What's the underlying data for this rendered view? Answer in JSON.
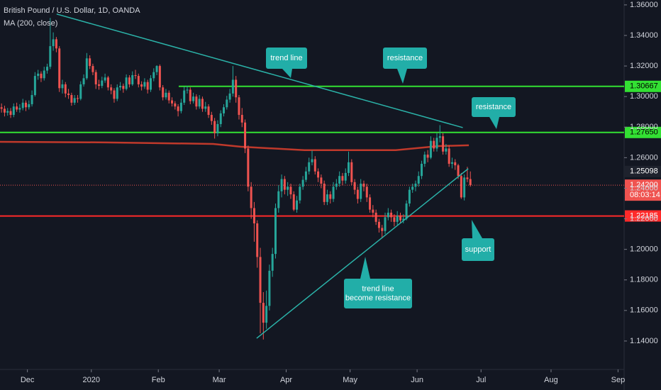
{
  "chart_data": {
    "type": "candlestick",
    "title": "British Pound / U.S. Dollar, 1D, OANDA",
    "subtitle": "MA (200, close)",
    "up_color": "#26a69a",
    "down_color": "#ef5350",
    "candles": [
      [
        1.293,
        1.2955,
        1.2895,
        1.292
      ],
      [
        1.292,
        1.294,
        1.287,
        1.2895
      ],
      [
        1.2895,
        1.2925,
        1.2875,
        1.2905
      ],
      [
        1.2905,
        1.2925,
        1.286,
        1.288
      ],
      [
        1.288,
        1.2955,
        1.2865,
        1.2935
      ],
      [
        1.2935,
        1.296,
        1.29,
        1.2915
      ],
      [
        1.2915,
        1.295,
        1.2895,
        1.2925
      ],
      [
        1.2925,
        1.2985,
        1.291,
        1.296
      ],
      [
        1.296,
        1.2975,
        1.2905,
        1.293
      ],
      [
        1.293,
        1.2975,
        1.2915,
        1.295
      ],
      [
        1.295,
        1.304,
        1.2935,
        1.301
      ],
      [
        1.301,
        1.316,
        1.3,
        1.3135
      ],
      [
        1.3135,
        1.3175,
        1.311,
        1.315
      ],
      [
        1.315,
        1.3165,
        1.3095,
        1.312
      ],
      [
        1.312,
        1.3195,
        1.3105,
        1.317
      ],
      [
        1.317,
        1.3215,
        1.315,
        1.3195
      ],
      [
        1.3195,
        1.3515,
        1.318,
        1.333
      ],
      [
        1.333,
        1.342,
        1.33,
        1.3375
      ],
      [
        1.3375,
        1.339,
        1.329,
        1.3315
      ],
      [
        1.3315,
        1.333,
        1.303,
        1.3055
      ],
      [
        1.3055,
        1.311,
        1.302,
        1.308
      ],
      [
        1.308,
        1.3095,
        1.2995,
        1.302
      ],
      [
        1.302,
        1.305,
        1.2985,
        1.301
      ],
      [
        1.301,
        1.3025,
        1.294,
        1.296
      ],
      [
        1.296,
        1.301,
        1.2945,
        1.299
      ],
      [
        1.299,
        1.301,
        1.296,
        1.2985
      ],
      [
        1.2985,
        1.31,
        1.2975,
        1.308
      ],
      [
        1.308,
        1.3145,
        1.3065,
        1.312
      ],
      [
        1.312,
        1.3285,
        1.311,
        1.325
      ],
      [
        1.325,
        1.327,
        1.318,
        1.32
      ],
      [
        1.32,
        1.3215,
        1.314,
        1.316
      ],
      [
        1.316,
        1.3175,
        1.305,
        1.308
      ],
      [
        1.308,
        1.311,
        1.3045,
        1.307
      ],
      [
        1.307,
        1.313,
        1.3055,
        1.3105
      ],
      [
        1.3105,
        1.315,
        1.309,
        1.3125
      ],
      [
        1.3125,
        1.3135,
        1.304,
        1.306
      ],
      [
        1.306,
        1.308,
        1.3015,
        1.304
      ],
      [
        1.304,
        1.3055,
        1.296,
        1.2985
      ],
      [
        1.2985,
        1.308,
        1.297,
        1.306
      ],
      [
        1.306,
        1.3095,
        1.304,
        1.307
      ],
      [
        1.307,
        1.3085,
        1.3025,
        1.305
      ],
      [
        1.305,
        1.3145,
        1.304,
        1.3125
      ],
      [
        1.3125,
        1.314,
        1.306,
        1.308
      ],
      [
        1.308,
        1.3165,
        1.307,
        1.314
      ],
      [
        1.314,
        1.3175,
        1.3115,
        1.3135
      ],
      [
        1.3135,
        1.315,
        1.306,
        1.308
      ],
      [
        1.308,
        1.31,
        1.304,
        1.3065
      ],
      [
        1.3065,
        1.312,
        1.305,
        1.3095
      ],
      [
        1.3095,
        1.311,
        1.302,
        1.3045
      ],
      [
        1.3045,
        1.314,
        1.303,
        1.312
      ],
      [
        1.312,
        1.3185,
        1.31,
        1.316
      ],
      [
        1.316,
        1.3205,
        1.314,
        1.32
      ],
      [
        1.32,
        1.321,
        1.304,
        1.306
      ],
      [
        1.306,
        1.3075,
        1.2975,
        1.2995
      ],
      [
        1.2995,
        1.305,
        1.298,
        1.3025
      ],
      [
        1.3025,
        1.304,
        1.2955,
        1.2975
      ],
      [
        1.2975,
        1.2995,
        1.2935,
        1.2955
      ],
      [
        1.2955,
        1.297,
        1.2915,
        1.2935
      ],
      [
        1.2935,
        1.295,
        1.287,
        1.2905
      ],
      [
        1.2905,
        1.2985,
        1.289,
        1.296
      ],
      [
        1.296,
        1.3065,
        1.2945,
        1.304
      ],
      [
        1.304,
        1.307,
        1.302,
        1.3045
      ],
      [
        1.3045,
        1.306,
        1.295,
        1.297
      ],
      [
        1.297,
        1.3025,
        1.2955,
        1.3
      ],
      [
        1.3,
        1.3015,
        1.2915,
        1.2935
      ],
      [
        1.2935,
        1.301,
        1.292,
        1.2985
      ],
      [
        1.2985,
        1.3,
        1.29,
        1.292
      ],
      [
        1.292,
        1.2965,
        1.29,
        1.2935
      ],
      [
        1.2935,
        1.295,
        1.286,
        1.288
      ],
      [
        1.288,
        1.29,
        1.2815,
        1.284
      ],
      [
        1.284,
        1.286,
        1.2725,
        1.276
      ],
      [
        1.276,
        1.2845,
        1.274,
        1.282
      ],
      [
        1.282,
        1.291,
        1.28,
        1.289
      ],
      [
        1.289,
        1.295,
        1.287,
        1.293
      ],
      [
        1.293,
        1.3005,
        1.2915,
        1.298
      ],
      [
        1.298,
        1.305,
        1.296,
        1.302
      ],
      [
        1.302,
        1.32,
        1.3,
        1.311
      ],
      [
        1.311,
        1.3135,
        1.296,
        1.2995
      ],
      [
        1.2995,
        1.301,
        1.285,
        1.288
      ],
      [
        1.288,
        1.2925,
        1.28,
        1.283
      ],
      [
        1.283,
        1.285,
        1.263,
        1.266
      ],
      [
        1.266,
        1.268,
        1.238,
        1.241
      ],
      [
        1.241,
        1.244,
        1.22,
        1.227
      ],
      [
        1.227,
        1.231,
        1.205,
        1.217
      ],
      [
        1.217,
        1.219,
        1.188,
        1.195
      ],
      [
        1.195,
        1.201,
        1.145,
        1.165
      ],
      [
        1.165,
        1.172,
        1.141,
        1.152
      ],
      [
        1.152,
        1.173,
        1.148,
        1.163
      ],
      [
        1.163,
        1.19,
        1.16,
        1.186
      ],
      [
        1.186,
        1.201,
        1.182,
        1.197
      ],
      [
        1.197,
        1.23,
        1.194,
        1.227
      ],
      [
        1.227,
        1.242,
        1.224,
        1.238
      ],
      [
        1.238,
        1.249,
        1.234,
        1.246
      ],
      [
        1.246,
        1.248,
        1.236,
        1.239
      ],
      [
        1.239,
        1.244,
        1.235,
        1.241
      ],
      [
        1.241,
        1.243,
        1.233,
        1.236
      ],
      [
        1.236,
        1.238,
        1.225,
        1.226
      ],
      [
        1.226,
        1.235,
        1.224,
        1.232
      ],
      [
        1.232,
        1.243,
        1.23,
        1.241
      ],
      [
        1.241,
        1.248,
        1.239,
        1.2455
      ],
      [
        1.2455,
        1.254,
        1.244,
        1.251
      ],
      [
        1.251,
        1.26,
        1.249,
        1.257
      ],
      [
        1.257,
        1.2647,
        1.255,
        1.259
      ],
      [
        1.259,
        1.261,
        1.249,
        1.251
      ],
      [
        1.251,
        1.253,
        1.244,
        1.247
      ],
      [
        1.247,
        1.249,
        1.24,
        1.243
      ],
      [
        1.243,
        1.245,
        1.229,
        1.231
      ],
      [
        1.231,
        1.239,
        1.229,
        1.236
      ],
      [
        1.236,
        1.238,
        1.23,
        1.233
      ],
      [
        1.233,
        1.244,
        1.231,
        1.241
      ],
      [
        1.241,
        1.246,
        1.239,
        1.243
      ],
      [
        1.243,
        1.251,
        1.241,
        1.248
      ],
      [
        1.248,
        1.25,
        1.242,
        1.245
      ],
      [
        1.245,
        1.253,
        1.243,
        1.25
      ],
      [
        1.25,
        1.264,
        1.248,
        1.257
      ],
      [
        1.257,
        1.259,
        1.242,
        1.244
      ],
      [
        1.244,
        1.246,
        1.236,
        1.239
      ],
      [
        1.239,
        1.241,
        1.23,
        1.233
      ],
      [
        1.233,
        1.246,
        1.231,
        1.243
      ],
      [
        1.243,
        1.245,
        1.238,
        1.241
      ],
      [
        1.241,
        1.243,
        1.231,
        1.234
      ],
      [
        1.234,
        1.236,
        1.224,
        1.226
      ],
      [
        1.226,
        1.229,
        1.221,
        1.224
      ],
      [
        1.224,
        1.226,
        1.216,
        1.218
      ],
      [
        1.218,
        1.22,
        1.211,
        1.214
      ],
      [
        1.214,
        1.216,
        1.2075,
        1.212
      ],
      [
        1.212,
        1.224,
        1.21,
        1.221
      ],
      [
        1.221,
        1.227,
        1.219,
        1.224
      ],
      [
        1.224,
        1.226,
        1.218,
        1.221
      ],
      [
        1.221,
        1.223,
        1.215,
        1.218
      ],
      [
        1.218,
        1.225,
        1.216,
        1.222
      ],
      [
        1.222,
        1.224,
        1.217,
        1.219
      ],
      [
        1.219,
        1.223,
        1.217,
        1.22
      ],
      [
        1.22,
        1.232,
        1.219,
        1.23
      ],
      [
        1.23,
        1.241,
        1.228,
        1.239
      ],
      [
        1.239,
        1.243,
        1.237,
        1.241
      ],
      [
        1.241,
        1.245,
        1.238,
        1.243
      ],
      [
        1.243,
        1.251,
        1.241,
        1.248
      ],
      [
        1.248,
        1.258,
        1.246,
        1.256
      ],
      [
        1.256,
        1.264,
        1.254,
        1.262
      ],
      [
        1.262,
        1.265,
        1.257,
        1.26
      ],
      [
        1.26,
        1.274,
        1.259,
        1.271
      ],
      [
        1.271,
        1.273,
        1.264,
        1.266
      ],
      [
        1.266,
        1.276,
        1.264,
        1.273
      ],
      [
        1.273,
        1.2813,
        1.27,
        1.274
      ],
      [
        1.274,
        1.276,
        1.262,
        1.264
      ],
      [
        1.264,
        1.269,
        1.262,
        1.266
      ],
      [
        1.266,
        1.268,
        1.254,
        1.256
      ],
      [
        1.256,
        1.26,
        1.253,
        1.257
      ],
      [
        1.257,
        1.259,
        1.252,
        1.255
      ],
      [
        1.255,
        1.256,
        1.246,
        1.248
      ],
      [
        1.248,
        1.25,
        1.233,
        1.234
      ],
      [
        1.234,
        1.249,
        1.232,
        1.247
      ],
      [
        1.247,
        1.254,
        1.244,
        1.246
      ],
      [
        1.246,
        1.251,
        1.241,
        1.242
      ]
    ],
    "ma": {
      "name": "MA (200, close)",
      "color": "#c0392b",
      "x": [
        0,
        35,
        70,
        79,
        100,
        130,
        144,
        154
      ],
      "values": [
        1.2704,
        1.27,
        1.269,
        1.2672,
        1.2649,
        1.2649,
        1.2676,
        1.2681
      ]
    },
    "trend_lines": [
      {
        "color": "#2bb3a9",
        "x": [
          18.6,
          152
        ],
        "values": [
          1.354,
          1.2797
        ]
      },
      {
        "color": "#2bb3a9",
        "x": [
          84.3,
          153.8
        ],
        "values": [
          1.1418,
          1.2528
        ]
      }
    ],
    "levels": [
      {
        "value": 1.30667,
        "color": "#33e033",
        "text_color": "#000000",
        "from": 58.7
      },
      {
        "value": 1.2765,
        "label": "1.27650",
        "color": "#33e033",
        "text_color": "#000000"
      },
      {
        "value": 1.22185,
        "color": "#ff2a2a",
        "text_color": "#ffffff"
      }
    ],
    "last_price": {
      "value": 1.242,
      "label": "1.24200",
      "countdown": "08:03:14",
      "color": "#ef5350"
    },
    "price_tag": {
      "value": 1.25098,
      "color": "#1e222d"
    },
    "annotations": [
      [
        "trend line"
      ],
      [
        "resistance"
      ],
      [
        "resistance"
      ],
      [
        "support"
      ],
      [
        "trend line",
        "become resistance"
      ]
    ],
    "annotation_color": "#22aea8",
    "xlim": [
      0,
      205
    ],
    "xticks": [
      {
        "value": 9,
        "label": "Dec"
      },
      {
        "value": 30,
        "label": "2020"
      },
      {
        "value": 52,
        "label": "Feb"
      },
      {
        "value": 72,
        "label": "Mar"
      },
      {
        "value": 94,
        "label": "Apr"
      },
      {
        "value": 115,
        "label": "May"
      },
      {
        "value": 137,
        "label": "Jun"
      },
      {
        "value": 158,
        "label": "Jul"
      },
      {
        "value": 181,
        "label": "Aug"
      },
      {
        "value": 203,
        "label": "Sep"
      }
    ],
    "ylim": [
      1.1214,
      1.3632
    ],
    "yticks": [
      {
        "value": 1.14,
        "label": "1.14000"
      },
      {
        "value": 1.16,
        "label": "1.16000"
      },
      {
        "value": 1.18,
        "label": "1.18000"
      },
      {
        "value": 1.2,
        "label": "1.20000"
      },
      {
        "value": 1.22,
        "label": "1.22000"
      },
      {
        "value": 1.24,
        "label": "1.24000"
      },
      {
        "value": 1.26,
        "label": "1.26000"
      },
      {
        "value": 1.28,
        "label": "1.28000"
      },
      {
        "value": 1.3,
        "label": "1.30000"
      },
      {
        "value": 1.32,
        "label": "1.32000"
      },
      {
        "value": 1.34,
        "label": "1.34000"
      },
      {
        "value": 1.36,
        "label": "1.36000"
      }
    ],
    "grid": false
  }
}
